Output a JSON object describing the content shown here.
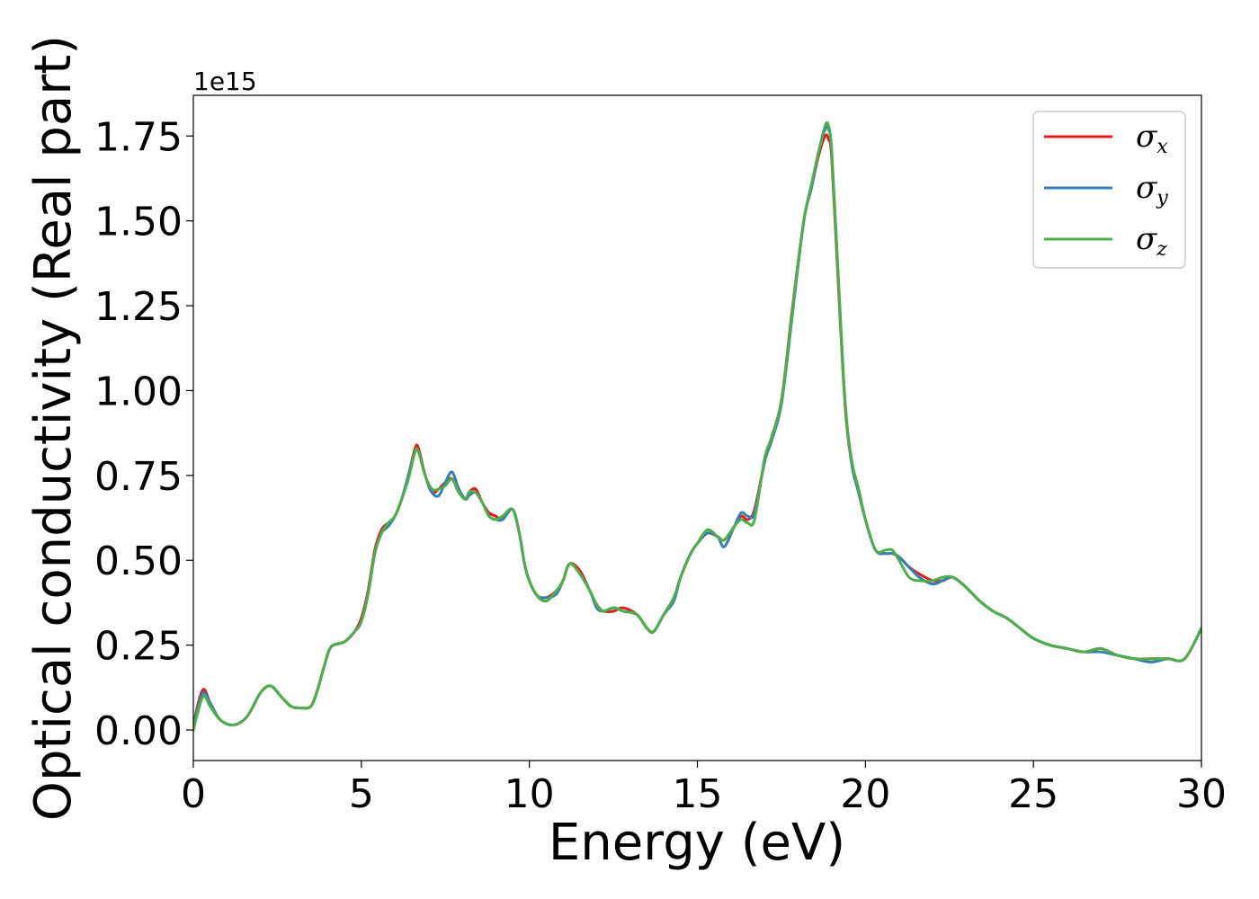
{
  "chart_data": {
    "type": "line",
    "xlabel": "Energy (eV)",
    "ylabel": "Optical conductivity (Real part)",
    "y_offset_label": "1e15",
    "xlim": [
      0,
      30
    ],
    "ylim": [
      -0.09,
      1.87
    ],
    "x_ticks": [
      0,
      5,
      10,
      15,
      20,
      25,
      30
    ],
    "x_tick_labels": [
      "0",
      "5",
      "10",
      "15",
      "20",
      "25",
      "30"
    ],
    "y_ticks": [
      0.0,
      0.25,
      0.5,
      0.75,
      1.0,
      1.25,
      1.5,
      1.75
    ],
    "y_tick_labels": [
      "0.00",
      "0.25",
      "0.50",
      "0.75",
      "1.00",
      "1.25",
      "1.50",
      "1.75"
    ],
    "grid": false,
    "legend_position": "top-right",
    "x": [
      0,
      0.1,
      0.3,
      0.5,
      0.8,
      1.2,
      1.6,
      2.0,
      2.3,
      2.6,
      2.9,
      3.2,
      3.5,
      3.7,
      3.9,
      4.1,
      4.5,
      4.8,
      5.0,
      5.2,
      5.4,
      5.6,
      5.8,
      6.0,
      6.2,
      6.4,
      6.6,
      6.7,
      6.9,
      7.1,
      7.3,
      7.5,
      7.7,
      7.9,
      8.1,
      8.2,
      8.4,
      8.6,
      8.8,
      9.0,
      9.2,
      9.5,
      9.7,
      9.9,
      10.2,
      10.5,
      10.8,
      11.0,
      11.2,
      11.5,
      11.8,
      12.0,
      12.2,
      12.5,
      12.8,
      13.2,
      13.5,
      13.7,
      14.0,
      14.3,
      14.5,
      14.8,
      15.0,
      15.3,
      15.6,
      15.8,
      16.1,
      16.3,
      16.5,
      16.7,
      17.0,
      17.2,
      17.5,
      17.8,
      18.0,
      18.2,
      18.4,
      18.6,
      18.8,
      18.9,
      19.0,
      19.2,
      19.4,
      19.6,
      19.8,
      20.0,
      20.3,
      20.6,
      20.8,
      21.0,
      21.3,
      21.6,
      22.0,
      22.3,
      22.6,
      23.0,
      23.4,
      23.8,
      24.2,
      24.6,
      25.0,
      25.5,
      26.0,
      26.5,
      27.0,
      27.5,
      28.0,
      28.5,
      29.0,
      29.5,
      30.0
    ],
    "series": [
      {
        "name": "σx",
        "color": "#e41a1c",
        "values": [
          0.0,
          0.06,
          0.12,
          0.08,
          0.03,
          0.015,
          0.04,
          0.11,
          0.13,
          0.1,
          0.07,
          0.065,
          0.07,
          0.12,
          0.19,
          0.245,
          0.26,
          0.29,
          0.33,
          0.41,
          0.53,
          0.59,
          0.61,
          0.63,
          0.68,
          0.75,
          0.83,
          0.83,
          0.75,
          0.7,
          0.71,
          0.73,
          0.74,
          0.7,
          0.68,
          0.7,
          0.71,
          0.67,
          0.64,
          0.63,
          0.62,
          0.65,
          0.58,
          0.47,
          0.4,
          0.39,
          0.41,
          0.44,
          0.49,
          0.47,
          0.41,
          0.37,
          0.35,
          0.35,
          0.36,
          0.34,
          0.3,
          0.29,
          0.34,
          0.39,
          0.45,
          0.52,
          0.55,
          0.58,
          0.57,
          0.56,
          0.6,
          0.63,
          0.62,
          0.65,
          0.79,
          0.86,
          0.97,
          1.22,
          1.38,
          1.52,
          1.6,
          1.69,
          1.75,
          1.74,
          1.68,
          1.3,
          0.95,
          0.78,
          0.7,
          0.62,
          0.53,
          0.52,
          0.52,
          0.51,
          0.48,
          0.46,
          0.44,
          0.44,
          0.45,
          0.42,
          0.38,
          0.35,
          0.33,
          0.3,
          0.27,
          0.25,
          0.24,
          0.23,
          0.24,
          0.22,
          0.21,
          0.21,
          0.21,
          0.21,
          0.3
        ]
      },
      {
        "name": "σy",
        "color": "#377eb8",
        "values": [
          0.0,
          0.05,
          0.11,
          0.08,
          0.03,
          0.015,
          0.04,
          0.11,
          0.13,
          0.1,
          0.07,
          0.065,
          0.07,
          0.12,
          0.19,
          0.245,
          0.26,
          0.29,
          0.32,
          0.4,
          0.52,
          0.58,
          0.6,
          0.63,
          0.68,
          0.75,
          0.82,
          0.82,
          0.75,
          0.7,
          0.69,
          0.73,
          0.76,
          0.71,
          0.68,
          0.69,
          0.7,
          0.67,
          0.63,
          0.62,
          0.62,
          0.65,
          0.58,
          0.47,
          0.4,
          0.39,
          0.4,
          0.44,
          0.49,
          0.46,
          0.41,
          0.36,
          0.35,
          0.36,
          0.35,
          0.34,
          0.3,
          0.29,
          0.34,
          0.38,
          0.45,
          0.52,
          0.55,
          0.58,
          0.57,
          0.54,
          0.6,
          0.64,
          0.63,
          0.64,
          0.79,
          0.85,
          0.96,
          1.2,
          1.37,
          1.52,
          1.6,
          1.7,
          1.77,
          1.77,
          1.7,
          1.32,
          0.96,
          0.78,
          0.7,
          0.62,
          0.53,
          0.52,
          0.52,
          0.51,
          0.48,
          0.45,
          0.43,
          0.44,
          0.45,
          0.42,
          0.38,
          0.35,
          0.33,
          0.3,
          0.27,
          0.25,
          0.24,
          0.23,
          0.23,
          0.22,
          0.21,
          0.2,
          0.21,
          0.21,
          0.3
        ]
      },
      {
        "name": "σz",
        "color": "#4daf4a",
        "values": [
          0.0,
          0.04,
          0.1,
          0.07,
          0.03,
          0.015,
          0.04,
          0.11,
          0.13,
          0.1,
          0.07,
          0.065,
          0.07,
          0.12,
          0.19,
          0.245,
          0.26,
          0.29,
          0.32,
          0.4,
          0.52,
          0.58,
          0.61,
          0.63,
          0.68,
          0.74,
          0.82,
          0.82,
          0.75,
          0.71,
          0.71,
          0.72,
          0.74,
          0.7,
          0.68,
          0.7,
          0.7,
          0.67,
          0.63,
          0.62,
          0.63,
          0.65,
          0.58,
          0.47,
          0.4,
          0.38,
          0.41,
          0.44,
          0.49,
          0.46,
          0.41,
          0.37,
          0.35,
          0.36,
          0.35,
          0.34,
          0.3,
          0.29,
          0.34,
          0.39,
          0.45,
          0.52,
          0.55,
          0.59,
          0.57,
          0.56,
          0.6,
          0.62,
          0.61,
          0.62,
          0.8,
          0.86,
          0.97,
          1.21,
          1.38,
          1.52,
          1.61,
          1.7,
          1.78,
          1.78,
          1.7,
          1.32,
          0.96,
          0.79,
          0.71,
          0.62,
          0.53,
          0.53,
          0.53,
          0.5,
          0.45,
          0.44,
          0.44,
          0.45,
          0.45,
          0.42,
          0.38,
          0.35,
          0.33,
          0.3,
          0.27,
          0.25,
          0.24,
          0.23,
          0.24,
          0.22,
          0.21,
          0.21,
          0.21,
          0.21,
          0.3
        ]
      }
    ]
  }
}
